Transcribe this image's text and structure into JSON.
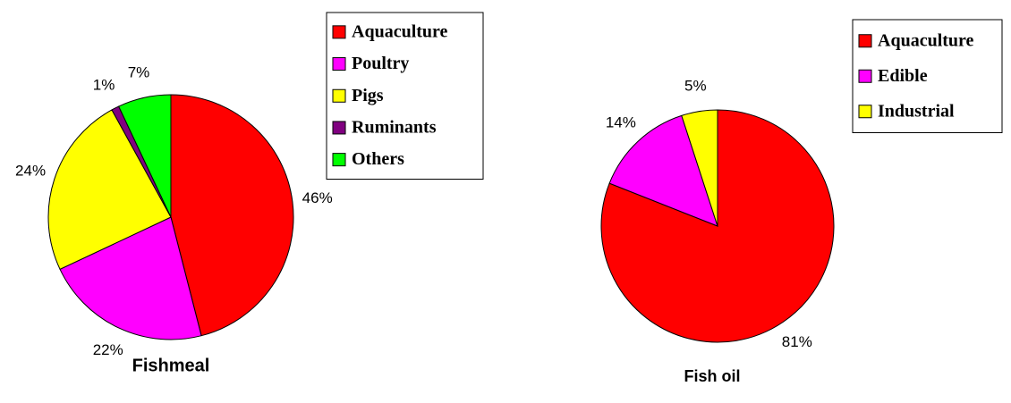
{
  "chart_data": [
    {
      "type": "pie",
      "title": "Fishmeal",
      "categories": [
        "Aquaculture",
        "Poultry",
        "Pigs",
        "Ruminants",
        "Others"
      ],
      "values": [
        46,
        22,
        24,
        1,
        7
      ],
      "value_labels": [
        "46%",
        "22%",
        "24%",
        "1%",
        "7%"
      ],
      "colors": [
        "#ff0000",
        "#ff00ff",
        "#ffff00",
        "#800080",
        "#00ff00"
      ],
      "legend": "right"
    },
    {
      "type": "pie",
      "title": "Fish oil",
      "categories": [
        "Aquaculture",
        "Edible",
        "Industrial"
      ],
      "values": [
        81,
        14,
        5
      ],
      "value_labels": [
        "81%",
        "14%",
        "5%"
      ],
      "colors": [
        "#ff0000",
        "#ff00ff",
        "#ffff00"
      ],
      "legend": "right"
    }
  ]
}
